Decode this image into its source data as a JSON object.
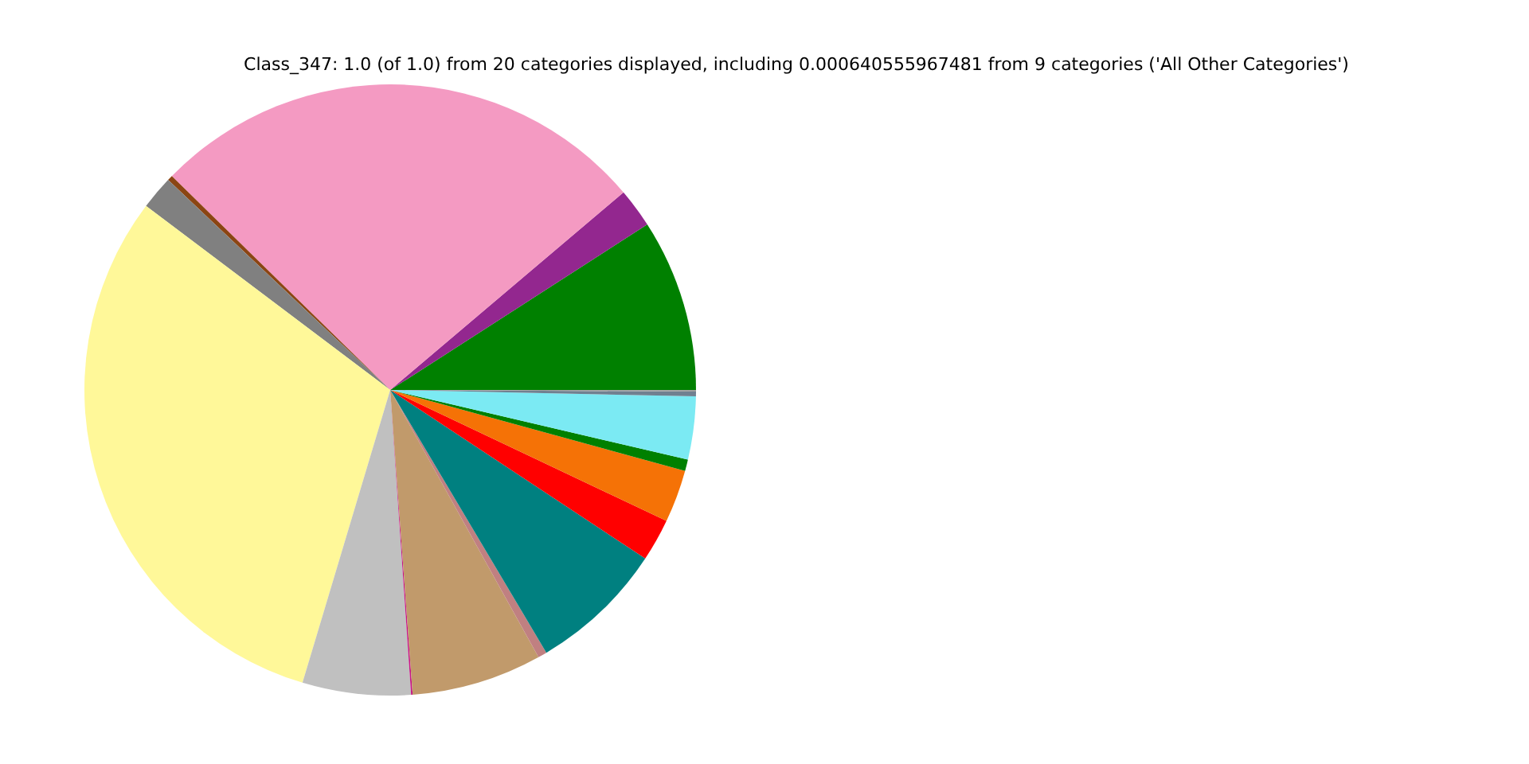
{
  "chart_data": {
    "type": "pie",
    "title": "Class_347: 1.0 (of 1.0) from 20 categories displayed, including 0.000640555967481 from 9 categories ('All Other Categories')",
    "categories": [
      null,
      null,
      null,
      null,
      null,
      null,
      null,
      null,
      null,
      null,
      null,
      null,
      null,
      null,
      null,
      null,
      null
    ],
    "values": [
      9.11,
      2.08,
      26.47,
      0.28,
      1.78,
      30.65,
      5.72,
      0.08,
      6.89,
      0.47,
      7.17,
      2.25,
      2.78,
      0.61,
      3.33,
      0.25,
      0.08
    ],
    "colors": [
      "#008000",
      "#93278f",
      "#f49ac2",
      "#8b4513",
      "#808080",
      "#fff899",
      "#c0c0c0",
      "#c71585",
      "#c19a6b",
      "#c08081",
      "#008080",
      "#ff0000",
      "#f57206",
      "#008000",
      "#7beaf3",
      "#708090",
      "#a0a0a0"
    ],
    "legend": false
  }
}
